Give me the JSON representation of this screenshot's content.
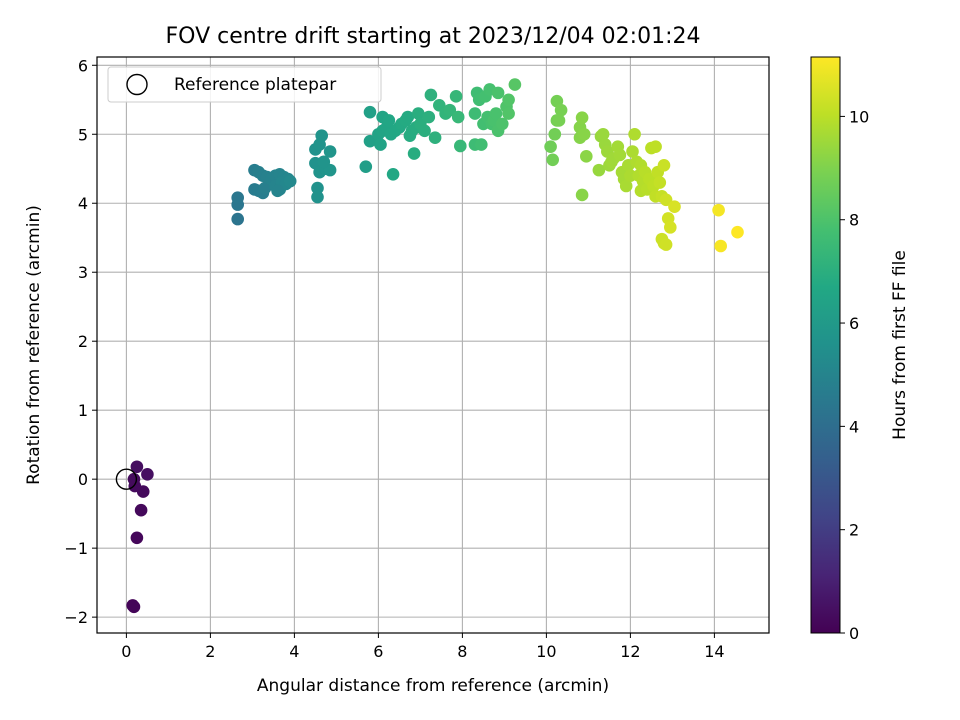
{
  "chart_data": {
    "type": "scatter",
    "title": "FOV centre drift starting at 2023/12/04 02:01:24",
    "xlabel": "Angular distance from reference (arcmin)",
    "ylabel": "Rotation from reference (arcmin)",
    "colorbar_label": "Hours from first FF file",
    "colormap": "viridis",
    "xlim": [
      -0.7,
      15.3
    ],
    "ylim": [
      -2.23,
      6.12
    ],
    "clim": [
      0,
      11.15
    ],
    "x_ticks": [
      0,
      2,
      4,
      6,
      8,
      10,
      12,
      14
    ],
    "y_ticks": [
      -2,
      -1,
      0,
      1,
      2,
      3,
      4,
      5,
      6
    ],
    "colorbar_ticks": [
      0,
      2,
      4,
      6,
      8,
      10
    ],
    "grid": true,
    "legend": {
      "placement": "upper-left",
      "entries": [
        "Reference platepar"
      ]
    },
    "reference_marker": {
      "x": 0,
      "y": 0,
      "label": "Reference platepar",
      "style": "hollow-circle"
    },
    "colors": {
      "marker_edge": "#000000",
      "grid": "#b0b0b0",
      "axes": "#000000"
    },
    "points": [
      [
        0.15,
        -1.83,
        0.1
      ],
      [
        0.18,
        -1.85,
        0.12
      ],
      [
        0.25,
        -0.85,
        0.2
      ],
      [
        0.35,
        -0.45,
        0.25
      ],
      [
        0.4,
        -0.18,
        0.28
      ],
      [
        0.2,
        -0.1,
        0.3
      ],
      [
        0.18,
        0.0,
        0.32
      ],
      [
        0.25,
        0.18,
        0.4
      ],
      [
        0.5,
        0.07,
        0.45
      ],
      [
        2.65,
        3.77,
        4.3
      ],
      [
        2.65,
        3.98,
        4.35
      ],
      [
        2.65,
        4.08,
        4.4
      ],
      [
        3.05,
        4.2,
        4.6
      ],
      [
        3.15,
        4.18,
        4.65
      ],
      [
        3.25,
        4.15,
        4.7
      ],
      [
        3.3,
        4.22,
        4.75
      ],
      [
        3.05,
        4.48,
        4.7
      ],
      [
        3.15,
        4.45,
        4.75
      ],
      [
        3.25,
        4.4,
        4.8
      ],
      [
        3.35,
        4.38,
        4.85
      ],
      [
        3.45,
        4.35,
        4.9
      ],
      [
        3.55,
        4.4,
        4.95
      ],
      [
        3.65,
        4.42,
        5.0
      ],
      [
        3.75,
        4.38,
        5.05
      ],
      [
        3.85,
        4.35,
        5.1
      ],
      [
        3.55,
        4.25,
        5.0
      ],
      [
        3.65,
        4.2,
        5.05
      ],
      [
        3.7,
        4.3,
        5.1
      ],
      [
        3.8,
        4.28,
        5.15
      ],
      [
        3.9,
        4.32,
        5.2
      ],
      [
        3.6,
        4.18,
        5.0
      ],
      [
        4.5,
        4.78,
        5.6
      ],
      [
        4.6,
        4.85,
        5.65
      ],
      [
        4.65,
        4.98,
        5.7
      ],
      [
        4.5,
        4.58,
        5.6
      ],
      [
        4.6,
        4.45,
        5.65
      ],
      [
        4.75,
        4.5,
        5.7
      ],
      [
        4.85,
        4.48,
        5.75
      ],
      [
        4.85,
        4.75,
        5.75
      ],
      [
        4.55,
        4.22,
        5.6
      ],
      [
        4.55,
        4.09,
        5.6
      ],
      [
        4.7,
        4.6,
        5.7
      ],
      [
        5.7,
        4.53,
        6.2
      ],
      [
        5.8,
        4.9,
        6.3
      ],
      [
        5.8,
        5.32,
        6.3
      ],
      [
        6.0,
        5.0,
        6.4
      ],
      [
        6.05,
        4.85,
        6.45
      ],
      [
        6.1,
        5.05,
        6.5
      ],
      [
        6.1,
        5.25,
        6.5
      ],
      [
        6.2,
        5.1,
        6.55
      ],
      [
        6.25,
        5.2,
        6.6
      ],
      [
        6.3,
        5.0,
        6.6
      ],
      [
        6.35,
        4.42,
        6.65
      ],
      [
        6.4,
        5.05,
        6.65
      ],
      [
        6.5,
        5.1,
        6.7
      ],
      [
        6.55,
        5.15,
        6.75
      ],
      [
        6.65,
        5.2,
        6.8
      ],
      [
        6.7,
        5.25,
        6.8
      ],
      [
        6.75,
        4.98,
        6.85
      ],
      [
        6.8,
        5.05,
        6.85
      ],
      [
        6.85,
        4.72,
        6.9
      ],
      [
        6.9,
        5.1,
        6.9
      ],
      [
        6.95,
        5.3,
        6.95
      ],
      [
        7.0,
        5.15,
        7.0
      ],
      [
        7.1,
        5.05,
        7.0
      ],
      [
        7.2,
        5.25,
        7.05
      ],
      [
        7.25,
        5.57,
        7.1
      ],
      [
        7.35,
        4.95,
        7.1
      ],
      [
        7.45,
        5.42,
        7.2
      ],
      [
        7.6,
        5.3,
        7.25
      ],
      [
        7.7,
        5.35,
        7.3
      ],
      [
        7.85,
        5.55,
        7.35
      ],
      [
        7.9,
        5.25,
        7.4
      ],
      [
        7.95,
        4.83,
        7.4
      ],
      [
        8.3,
        5.3,
        7.6
      ],
      [
        8.3,
        4.85,
        7.6
      ],
      [
        8.35,
        5.6,
        7.65
      ],
      [
        8.4,
        5.5,
        7.7
      ],
      [
        8.45,
        4.85,
        7.7
      ],
      [
        8.5,
        5.15,
        7.75
      ],
      [
        8.55,
        5.55,
        7.8
      ],
      [
        8.6,
        5.25,
        7.8
      ],
      [
        8.65,
        5.65,
        7.85
      ],
      [
        8.7,
        5.15,
        7.85
      ],
      [
        8.75,
        5.2,
        7.9
      ],
      [
        8.8,
        5.3,
        7.9
      ],
      [
        8.85,
        5.6,
        7.95
      ],
      [
        8.85,
        5.05,
        7.95
      ],
      [
        8.95,
        5.15,
        8.0
      ],
      [
        9.05,
        5.4,
        8.05
      ],
      [
        9.1,
        5.3,
        8.1
      ],
      [
        9.1,
        5.5,
        8.1
      ],
      [
        9.25,
        5.72,
        8.2
      ],
      [
        10.1,
        4.82,
        8.7
      ],
      [
        10.15,
        4.63,
        8.75
      ],
      [
        10.2,
        5.0,
        8.75
      ],
      [
        10.25,
        5.2,
        8.8
      ],
      [
        10.25,
        5.48,
        8.8
      ],
      [
        10.35,
        5.35,
        8.85
      ],
      [
        10.3,
        5.2,
        8.85
      ],
      [
        10.8,
        5.1,
        9.1
      ],
      [
        10.8,
        4.95,
        9.1
      ],
      [
        10.85,
        5.24,
        9.15
      ],
      [
        10.9,
        5.0,
        9.15
      ],
      [
        10.85,
        4.12,
        9.15
      ],
      [
        10.95,
        4.68,
        9.2
      ],
      [
        11.25,
        4.48,
        9.4
      ],
      [
        11.3,
        4.97,
        9.4
      ],
      [
        11.35,
        5.0,
        9.45
      ],
      [
        11.4,
        4.85,
        9.45
      ],
      [
        11.45,
        4.75,
        9.5
      ],
      [
        11.5,
        4.55,
        9.5
      ],
      [
        11.55,
        4.6,
        9.55
      ],
      [
        11.6,
        4.65,
        9.55
      ],
      [
        11.7,
        4.82,
        9.6
      ],
      [
        11.75,
        4.7,
        9.6
      ],
      [
        11.8,
        4.45,
        9.65
      ],
      [
        11.85,
        4.35,
        9.65
      ],
      [
        11.9,
        4.25,
        9.7
      ],
      [
        11.95,
        4.55,
        9.7
      ],
      [
        12.0,
        4.4,
        9.75
      ],
      [
        12.05,
        4.75,
        9.75
      ],
      [
        12.1,
        5.0,
        9.8
      ],
      [
        12.15,
        4.6,
        9.8
      ],
      [
        12.2,
        4.4,
        9.85
      ],
      [
        12.25,
        4.55,
        9.85
      ],
      [
        12.25,
        4.18,
        9.9
      ],
      [
        12.3,
        4.32,
        9.9
      ],
      [
        12.35,
        4.45,
        9.95
      ],
      [
        12.4,
        4.2,
        9.95
      ],
      [
        12.45,
        4.35,
        10.0
      ],
      [
        12.5,
        4.8,
        10.0
      ],
      [
        12.55,
        4.25,
        10.05
      ],
      [
        12.6,
        4.82,
        10.05
      ],
      [
        12.6,
        4.1,
        10.1
      ],
      [
        12.65,
        4.45,
        10.1
      ],
      [
        12.7,
        4.3,
        10.15
      ],
      [
        12.75,
        4.1,
        10.2
      ],
      [
        12.8,
        4.55,
        10.25
      ],
      [
        12.75,
        3.48,
        10.3
      ],
      [
        12.8,
        3.42,
        10.3
      ],
      [
        12.85,
        3.4,
        10.35
      ],
      [
        12.85,
        4.05,
        10.35
      ],
      [
        12.9,
        3.78,
        10.4
      ],
      [
        12.95,
        3.65,
        10.45
      ],
      [
        13.05,
        3.95,
        10.5
      ],
      [
        14.1,
        3.9,
        11.0
      ],
      [
        14.15,
        3.38,
        11.05
      ],
      [
        14.55,
        3.58,
        11.15
      ]
    ]
  }
}
